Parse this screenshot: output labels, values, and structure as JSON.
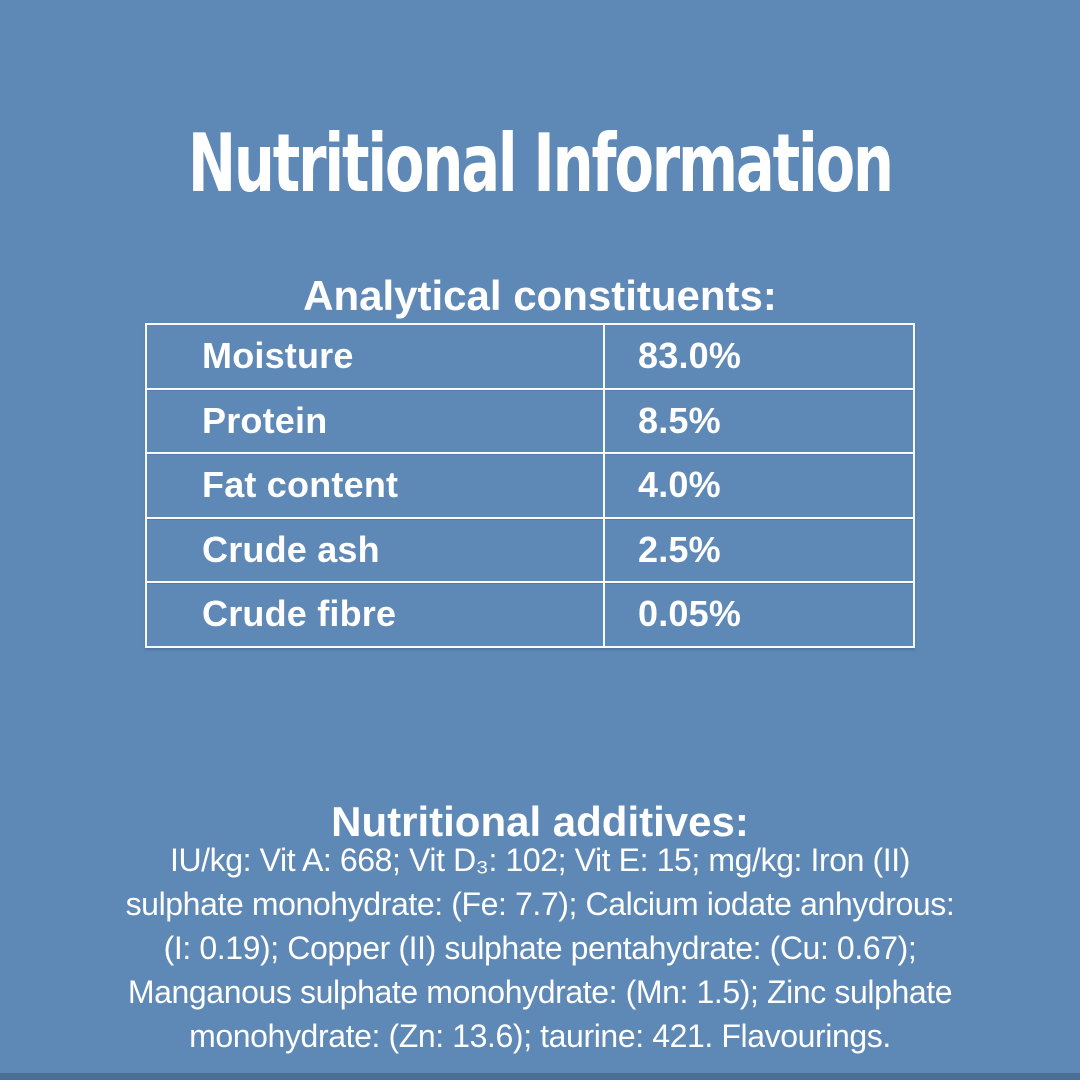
{
  "page": {
    "title": "Nutritional Information",
    "colors": {
      "background": "#5e88b6",
      "text": "#ffffff",
      "table_border": "#f6fafd",
      "bottom_strip": "#4a6f97"
    }
  },
  "analytical": {
    "heading": "Analytical constituents:",
    "rows": [
      {
        "label": "Moisture",
        "value": "83.0%"
      },
      {
        "label": "Protein",
        "value": "8.5%"
      },
      {
        "label": "Fat content",
        "value": "4.0%"
      },
      {
        "label": "Crude ash",
        "value": "2.5%"
      },
      {
        "label": "Crude fibre",
        "value": "0.05%"
      }
    ]
  },
  "additives": {
    "heading": "Nutritional additives:",
    "lines": [
      "IU/kg: Vit A: 668; Vit D₃: 102; Vit E: 15; mg/kg: Iron (II)",
      "sulphate monohydrate: (Fe: 7.7); Calcium iodate anhydrous:",
      "(I: 0.19); Copper (II) sulphate pentahydrate: (Cu: 0.67);",
      "Manganous sulphate monohydrate: (Mn: 1.5); Zinc sulphate",
      "monohydrate: (Zn: 13.6); taurine: 421. Flavourings."
    ]
  }
}
